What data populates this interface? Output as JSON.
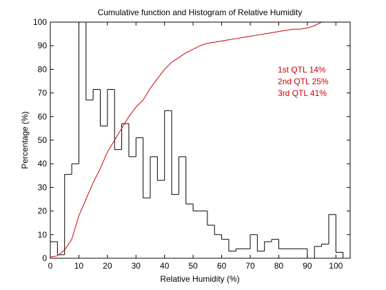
{
  "chart_data": {
    "type": "line",
    "title": "Cumulative function and Histogram of Relative Humidity",
    "xlabel": "Relative Humidity (%)",
    "ylabel": "Percentage (%)",
    "xlim": [
      0,
      105
    ],
    "ylim": [
      0,
      100
    ],
    "xticks": [
      0,
      10,
      20,
      30,
      40,
      50,
      60,
      70,
      80,
      90,
      100
    ],
    "yticks": [
      0,
      10,
      20,
      30,
      40,
      50,
      60,
      70,
      80,
      90,
      100
    ],
    "grid": false,
    "colors": {
      "histogram": "#000000",
      "cumulative": "#cc0000"
    },
    "histogram": {
      "bin_width": 2.5,
      "bin_starts": [
        0,
        2.5,
        5,
        7.5,
        10,
        12.5,
        15,
        17.5,
        20,
        22.5,
        25,
        27.5,
        30,
        32.5,
        35,
        37.5,
        40,
        42.5,
        45,
        47.5,
        50,
        52.5,
        55,
        57.5,
        60,
        62.5,
        65,
        67.5,
        70,
        72.5,
        75,
        77.5,
        80,
        82.5,
        85,
        87.5,
        90,
        92.5,
        95,
        97.5,
        100,
        102.5
      ],
      "values": [
        7,
        1.5,
        35.5,
        40,
        100,
        67,
        71.5,
        56,
        71.5,
        46,
        57,
        43,
        51,
        25.5,
        43,
        33,
        62.5,
        27,
        43,
        23,
        20,
        20,
        14,
        10,
        8,
        3,
        4,
        4,
        10,
        3,
        7,
        8,
        4,
        4,
        4,
        4,
        0,
        5,
        6,
        18.5,
        2.5,
        0
      ]
    },
    "cumulative": {
      "x": [
        0,
        2.5,
        5,
        7.5,
        10,
        12.5,
        15,
        17.5,
        20,
        22.5,
        25,
        27.5,
        30,
        32.5,
        35,
        37.5,
        40,
        42.5,
        45,
        47.5,
        50,
        52.5,
        55,
        57.5,
        60,
        62.5,
        65,
        67.5,
        70,
        72.5,
        75,
        77.5,
        80,
        82.5,
        85,
        87.5,
        90,
        92.5,
        95,
        97.5,
        100,
        102.5
      ],
      "values": [
        0.5,
        1,
        3.5,
        8,
        18,
        25,
        32,
        38,
        45,
        50,
        55,
        60,
        64,
        67,
        72,
        76,
        80,
        83,
        85,
        87,
        88.5,
        90,
        91,
        91.5,
        92,
        92.5,
        93,
        93.5,
        94,
        94.5,
        95,
        95.5,
        96,
        96.5,
        97,
        97,
        97.5,
        98.5,
        100,
        100,
        100,
        100
      ]
    },
    "annotations": [
      "1st QTL  14%",
      "2nd QTL  25%",
      "3rd QTL  41%"
    ]
  }
}
